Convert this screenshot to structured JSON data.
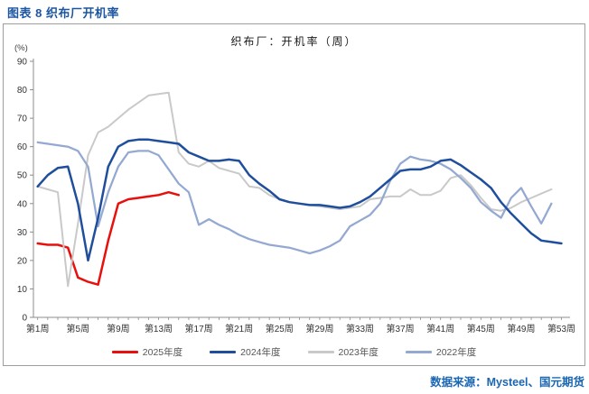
{
  "page": {
    "title": "图表 8 织布厂开机率",
    "source": "数据来源：Mysteel、国元期货"
  },
  "chart_data": {
    "type": "line",
    "title": "织布厂：开机率（周）",
    "unit_label": "(%)",
    "ylim": [
      0,
      90
    ],
    "ytick_step": 10,
    "x_weeks_total": 53,
    "xtick_weeks": [
      1,
      5,
      9,
      13,
      17,
      21,
      25,
      29,
      33,
      37,
      41,
      45,
      49,
      53
    ],
    "xtick_labels": [
      "第1周",
      "第5周",
      "第9周",
      "第13周",
      "第17周",
      "第21周",
      "第25周",
      "第29周",
      "第33周",
      "第37周",
      "第41周",
      "第45周",
      "第49周",
      "第53周"
    ],
    "grid": false,
    "legend_position": "bottom",
    "axis_color": "#8c8c8c",
    "tick_text_color": "#333333",
    "draw_order": [
      "2025年度",
      "2023年度",
      "2022年度",
      "2024年度"
    ],
    "series": [
      {
        "name": "2025年度",
        "color": "#e8100c",
        "width": 2.5,
        "start_week": 1,
        "values": [
          26,
          25.5,
          25.5,
          24.5,
          14,
          12.5,
          11.5,
          27,
          40,
          41.5,
          42,
          42.5,
          43,
          44,
          43
        ]
      },
      {
        "name": "2024年度",
        "color": "#1f4e9c",
        "width": 2.5,
        "start_week": 1,
        "values": [
          46,
          50,
          52.5,
          53,
          40,
          20,
          35,
          53,
          60,
          62,
          62.5,
          62.5,
          62,
          61.5,
          61,
          58,
          56.5,
          55,
          55,
          55.5,
          55,
          50,
          47,
          44.5,
          41.5,
          40.5,
          40,
          39.5,
          39.5,
          39,
          38.5,
          39,
          40.5,
          42.5,
          45.5,
          48.5,
          51.5,
          52,
          52,
          53,
          55,
          55.5,
          53.5,
          51,
          48.5,
          45.5,
          40.5,
          36.5,
          33,
          29.5,
          27,
          26.5,
          26
        ]
      },
      {
        "name": "2023年度",
        "color": "#c9c9c9",
        "width": 2,
        "start_week": 1,
        "values": [
          46,
          45,
          44,
          11,
          33,
          57,
          65,
          67,
          70,
          73,
          75.5,
          78,
          78.5,
          79,
          58,
          54,
          53,
          55,
          52.5,
          51.5,
          50.5,
          46,
          45.5,
          43,
          41.5,
          40.5,
          40,
          39.5,
          39,
          38.5,
          38,
          38.5,
          39,
          41.5,
          42,
          42.5,
          42.5,
          45,
          43,
          43,
          44.5,
          49,
          50,
          46.5,
          42,
          38,
          37.5,
          38.5,
          40.5,
          42,
          43.5,
          45
        ]
      },
      {
        "name": "2022年度",
        "color": "#93a9d1",
        "width": 2.25,
        "start_week": 1,
        "values": [
          61.5,
          61,
          60.5,
          60,
          58.5,
          53,
          32,
          44,
          53,
          58,
          58.5,
          58.5,
          57,
          52,
          47,
          44,
          32.5,
          34.5,
          32.5,
          31,
          29,
          27.5,
          26.5,
          25.5,
          25,
          24.5,
          23.5,
          22.5,
          23.5,
          25,
          27,
          32,
          34,
          36,
          40,
          48,
          54,
          56.5,
          55.5,
          55,
          54,
          52,
          49,
          45.5,
          40.5,
          37.5,
          35,
          42,
          45.5,
          39,
          33,
          40
        ]
      }
    ]
  }
}
